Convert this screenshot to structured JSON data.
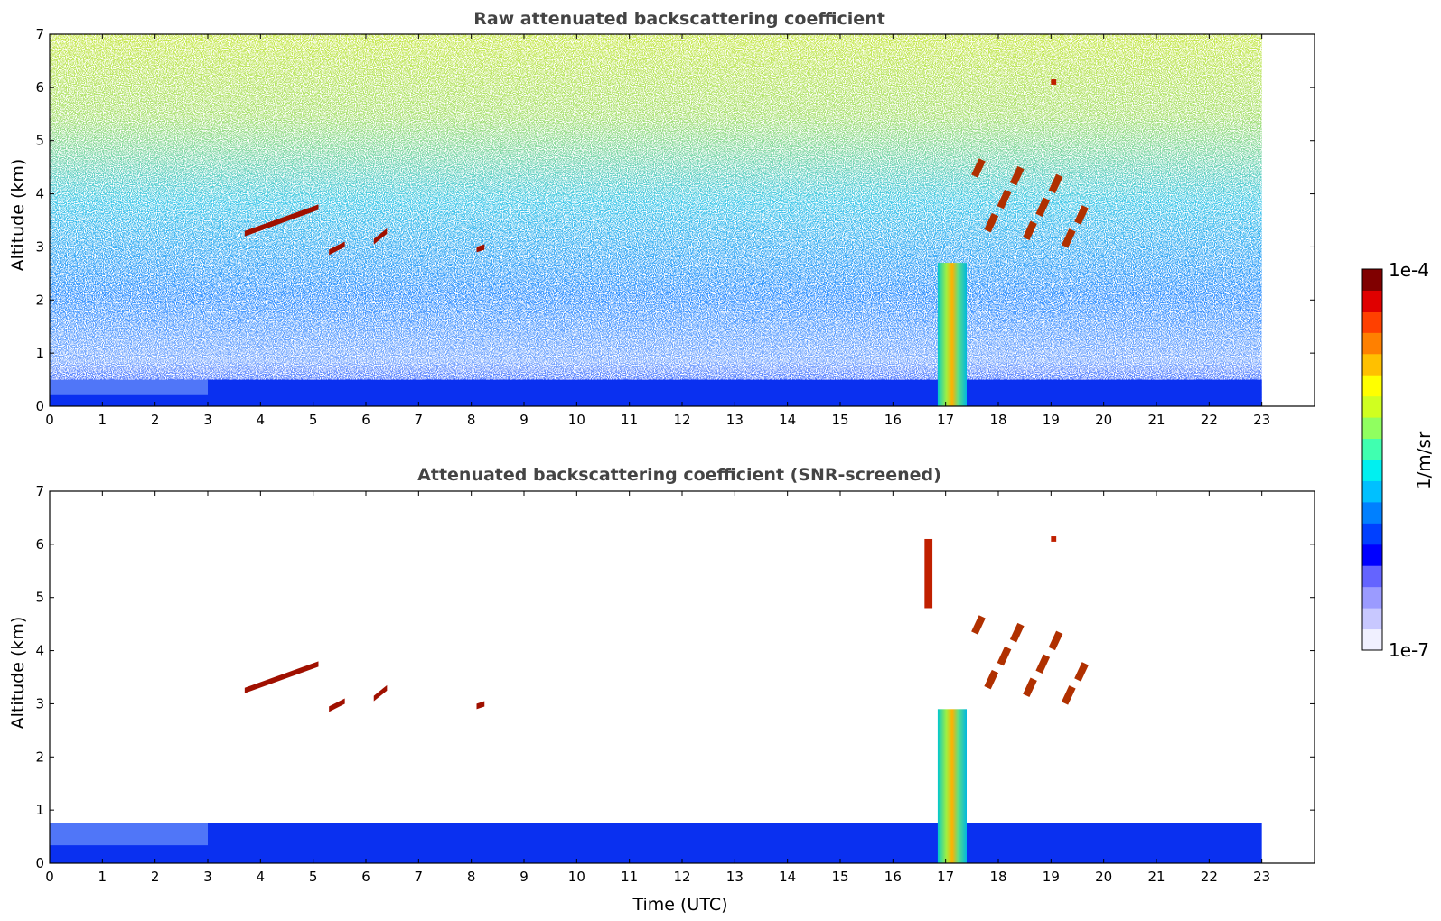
{
  "chart_data": [
    {
      "type": "heatmap",
      "title": "Raw attenuated backscattering coefficient",
      "xlabel": "",
      "ylabel": "Altitude (km)",
      "xlim": [
        0,
        24
      ],
      "ylim": [
        0,
        7
      ],
      "x_ticks": [
        "0",
        "1",
        "2",
        "3",
        "4",
        "5",
        "6",
        "7",
        "8",
        "9",
        "10",
        "11",
        "12",
        "13",
        "14",
        "15",
        "16",
        "17",
        "18",
        "19",
        "20",
        "21",
        "22",
        "23"
      ],
      "y_ticks": [
        "0",
        "1",
        "2",
        "3",
        "4",
        "5",
        "6",
        "7"
      ],
      "data_end_time": 23,
      "boundary_layer_top_km": 0.5,
      "noise_level": "high",
      "features": [
        {
          "kind": "aerosol_layer",
          "x": [
            3.7,
            5.1
          ],
          "y": [
            3.3,
            3.8
          ]
        },
        {
          "kind": "aerosol_layer",
          "x": [
            5.3,
            5.6
          ],
          "y": [
            2.95,
            3.1
          ]
        },
        {
          "kind": "aerosol_layer",
          "x": [
            6.15,
            6.4
          ],
          "y": [
            3.15,
            3.35
          ]
        },
        {
          "kind": "aerosol_layer",
          "x": [
            8.1,
            8.25
          ],
          "y": [
            3.0,
            3.05
          ]
        },
        {
          "kind": "precipitation_column",
          "x": [
            16.85,
            17.4
          ],
          "y": [
            0,
            2.7
          ]
        },
        {
          "kind": "cloud_fragments",
          "x": [
            17.5,
            19.7
          ],
          "y": [
            2.7,
            4.8
          ]
        },
        {
          "kind": "cloud_fragment",
          "x": [
            19.0,
            19.1
          ],
          "y": [
            6.05,
            6.15
          ]
        }
      ]
    },
    {
      "type": "heatmap",
      "title": "Attenuated backscattering coefficient (SNR-screened)",
      "xlabel": "Time (UTC)",
      "ylabel": "Altitude (km)",
      "xlim": [
        0,
        24
      ],
      "ylim": [
        0,
        7
      ],
      "x_ticks": [
        "0",
        "1",
        "2",
        "3",
        "4",
        "5",
        "6",
        "7",
        "8",
        "9",
        "10",
        "11",
        "12",
        "13",
        "14",
        "15",
        "16",
        "17",
        "18",
        "19",
        "20",
        "21",
        "22",
        "23"
      ],
      "y_ticks": [
        "0",
        "1",
        "2",
        "3",
        "4",
        "5",
        "6",
        "7"
      ],
      "data_end_time": 23,
      "boundary_layer_top_km": 0.75,
      "noise_level": "screened",
      "features": [
        {
          "kind": "aerosol_layer",
          "x": [
            3.7,
            5.1
          ],
          "y": [
            3.3,
            3.8
          ]
        },
        {
          "kind": "aerosol_layer",
          "x": [
            5.3,
            5.6
          ],
          "y": [
            2.95,
            3.1
          ]
        },
        {
          "kind": "aerosol_layer",
          "x": [
            6.15,
            6.4
          ],
          "y": [
            3.15,
            3.35
          ]
        },
        {
          "kind": "aerosol_layer",
          "x": [
            8.1,
            8.25
          ],
          "y": [
            3.0,
            3.05
          ]
        },
        {
          "kind": "precipitation_column",
          "x": [
            16.85,
            17.4
          ],
          "y": [
            0,
            2.9
          ]
        },
        {
          "kind": "cloud_fragments",
          "x": [
            17.5,
            19.7
          ],
          "y": [
            2.7,
            4.8
          ]
        },
        {
          "kind": "cloud_fragment",
          "x": [
            19.0,
            19.1
          ],
          "y": [
            6.05,
            6.15
          ]
        },
        {
          "kind": "cloud_fragment",
          "x": [
            16.6,
            16.75
          ],
          "y": [
            4.8,
            6.1
          ]
        }
      ]
    }
  ],
  "colorbar": {
    "label": "1/m/sr",
    "max_label": "1e-4",
    "min_label": "1e-7",
    "colors": [
      "#f0f0ff",
      "#c8c8ff",
      "#9b9bff",
      "#6464ff",
      "#0000ff",
      "#0040ff",
      "#0080ff",
      "#00c0ff",
      "#00f0f0",
      "#40ffb0",
      "#90ff60",
      "#d0ff20",
      "#ffff00",
      "#ffc000",
      "#ff8000",
      "#ff4000",
      "#e00000",
      "#800000"
    ]
  }
}
